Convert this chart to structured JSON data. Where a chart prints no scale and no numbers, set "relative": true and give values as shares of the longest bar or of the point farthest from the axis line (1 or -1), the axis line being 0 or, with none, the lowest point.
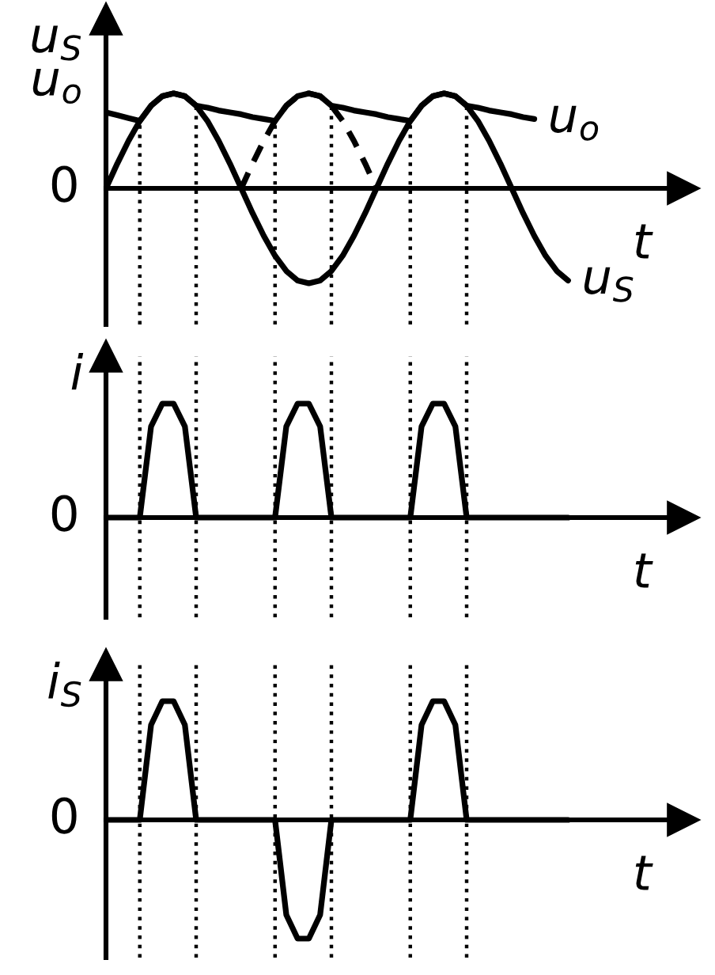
{
  "chart_data": [
    {
      "type": "line",
      "relative": true,
      "xlabel": "t",
      "ylabel": "u$_{S}$\nu$_{o}$",
      "legend": false,
      "categories": [
        null,
        null,
        null,
        null,
        null,
        null,
        null,
        null,
        null,
        null,
        null,
        null,
        null,
        null,
        null,
        null,
        null,
        null,
        null,
        null,
        null,
        null,
        null,
        null,
        null,
        null,
        null,
        null,
        null,
        null,
        null,
        null,
        null,
        null,
        null,
        null,
        null,
        null,
        null,
        null,
        null,
        null
      ],
      "series": [
        {
          "name": "u$_{o}$",
          "color": "#000000",
          "line_style": "solid",
          "values": [
            0.8,
            0.77,
            0.74,
            0.71,
            0.87,
            0.97,
            1,
            0.97,
            0.87,
            0.85,
            0.82,
            0.8,
            0.78,
            0.75,
            0.73,
            0.71,
            0.87,
            0.97,
            1,
            0.97,
            0.87,
            0.85,
            0.82,
            0.8,
            0.78,
            0.75,
            0.73,
            0.71,
            0.87,
            0.97,
            1,
            0.97,
            0.87,
            0.85,
            0.82,
            0.8,
            0.78,
            0.75,
            0.73,
            null,
            null,
            null
          ]
        },
        {
          "name": "u$_{S}$",
          "color": "#000000",
          "line_style": "solid",
          "values": [
            0,
            0.26,
            0.5,
            0.71,
            0.87,
            0.97,
            1,
            0.97,
            0.87,
            0.71,
            0.5,
            0.26,
            0,
            -0.26,
            -0.5,
            -0.71,
            -0.87,
            -0.97,
            -1,
            -0.97,
            -0.87,
            -0.71,
            -0.5,
            -0.26,
            0,
            0.26,
            0.5,
            0.71,
            0.87,
            0.97,
            1,
            0.97,
            0.87,
            0.71,
            0.5,
            0.26,
            0,
            -0.26,
            -0.5,
            -0.71,
            -0.87,
            -0.97
          ]
        },
        {
          "color": "#000000",
          "line_style": "dashed",
          "values": [
            null,
            null,
            null,
            null,
            null,
            null,
            null,
            null,
            null,
            null,
            null,
            null,
            0,
            0.26,
            0.5,
            0.71,
            0.87,
            0.97,
            1,
            0.97,
            0.87,
            0.71,
            0.5,
            0.26,
            0,
            null,
            null,
            null,
            null,
            null,
            null,
            null,
            null,
            null,
            null,
            null,
            null,
            null,
            null,
            null,
            null,
            null
          ]
        }
      ],
      "annotations": [
        "0"
      ],
      "grid": "x"
    },
    {
      "type": "line",
      "relative": true,
      "xlabel": "t",
      "ylabel": "i",
      "legend": false,
      "categories": [
        null,
        null,
        null,
        null,
        null,
        null,
        null,
        null,
        null,
        null,
        null,
        null,
        null,
        null,
        null,
        null,
        null,
        null,
        null,
        null,
        null,
        null,
        null,
        null,
        null,
        null,
        null,
        null,
        null,
        null,
        null,
        null,
        null,
        null,
        null,
        null,
        null,
        null,
        null,
        null,
        null,
        null
      ],
      "series": [
        {
          "color": "#000000",
          "line_style": "solid",
          "values": [
            0,
            0,
            0,
            0,
            0.8,
            1,
            1,
            0.8,
            0,
            0,
            0,
            0,
            0,
            0,
            0,
            0,
            0.8,
            1,
            1,
            0.8,
            0,
            0,
            0,
            0,
            0,
            0,
            0,
            0,
            0.8,
            1,
            1,
            0.8,
            0,
            0,
            0,
            0,
            0,
            0,
            0,
            0,
            0,
            0
          ]
        }
      ],
      "annotations": [
        "0"
      ],
      "grid": "x"
    },
    {
      "type": "line",
      "relative": true,
      "xlabel": "t",
      "ylabel": "i$_{S}$",
      "legend": false,
      "categories": [
        null,
        null,
        null,
        null,
        null,
        null,
        null,
        null,
        null,
        null,
        null,
        null,
        null,
        null,
        null,
        null,
        null,
        null,
        null,
        null,
        null,
        null,
        null,
        null,
        null,
        null,
        null,
        null,
        null,
        null,
        null,
        null,
        null,
        null,
        null,
        null,
        null,
        null,
        null,
        null,
        null,
        null
      ],
      "series": [
        {
          "color": "#000000",
          "line_style": "solid",
          "values": [
            0,
            0,
            0,
            0,
            0.8,
            1,
            1,
            0.8,
            0,
            0,
            0,
            0,
            0,
            0,
            0,
            0,
            -0.8,
            -1,
            -1,
            -0.8,
            0,
            0,
            0,
            0,
            0,
            0,
            0,
            0,
            0.8,
            1,
            1,
            0.8,
            0,
            0,
            0,
            0,
            0,
            0,
            0,
            0,
            0,
            0
          ]
        }
      ],
      "annotations": [
        "0"
      ],
      "grid": "x"
    }
  ]
}
